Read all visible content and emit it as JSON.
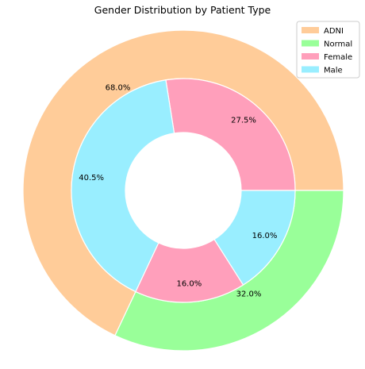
{
  "chart_data": {
    "type": "pie",
    "title": "Gender Distribution by Patient Type",
    "outer_ring": {
      "slices": [
        {
          "name": "ADNI",
          "value": 68.0,
          "label": "68.0%",
          "color": "#ffcc99"
        },
        {
          "name": "Normal",
          "value": 32.0,
          "label": "32.0%",
          "color": "#99ff99"
        }
      ]
    },
    "inner_ring": {
      "slices": [
        {
          "name": "Female",
          "value": 27.5,
          "label": "27.5%",
          "color": "#ff9fbb"
        },
        {
          "name": "Male",
          "value": 40.5,
          "label": "40.5%",
          "color": "#99eeff"
        },
        {
          "name": "Female",
          "value": 16.0,
          "label": "16.0%",
          "color": "#ff9fbb"
        },
        {
          "name": "Male",
          "value": 16.0,
          "label": "16.0%",
          "color": "#99eeff"
        }
      ]
    },
    "legend": {
      "placement": "top-right",
      "entries": [
        {
          "label": "ADNI",
          "color": "#ffcc99"
        },
        {
          "label": "Normal",
          "color": "#99ff99"
        },
        {
          "label": "Female",
          "color": "#ff9fbb"
        },
        {
          "label": "Male",
          "color": "#99eeff"
        }
      ]
    }
  }
}
